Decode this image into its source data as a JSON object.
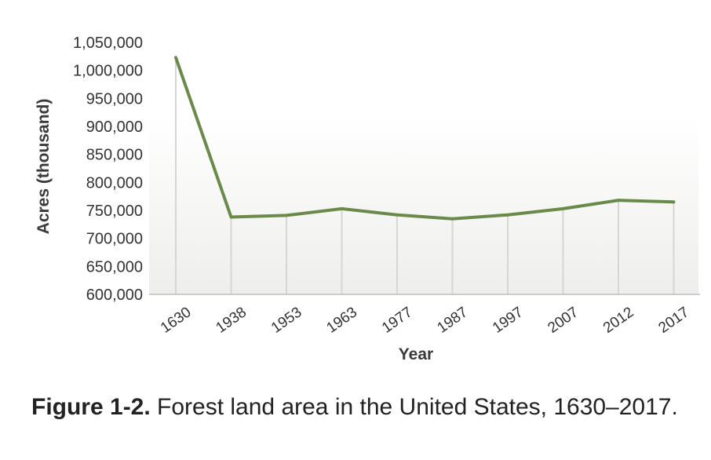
{
  "chart_data": {
    "type": "line",
    "xlabel": "Year",
    "ylabel": "Acres (thousand)",
    "categories": [
      "1630",
      "1938",
      "1953",
      "1963",
      "1977",
      "1987",
      "1997",
      "2007",
      "2012",
      "2017"
    ],
    "series": [
      {
        "values": [
          1023000,
          738000,
          741000,
          753000,
          742000,
          735000,
          742000,
          753000,
          768000,
          765000
        ]
      }
    ],
    "ylim": [
      600000,
      1050000
    ],
    "yticks": [
      "600,000",
      "650,000",
      "700,000",
      "750,000",
      "800,000",
      "850,000",
      "900,000",
      "950,000",
      "1,000,000",
      "1,050,000"
    ],
    "line_color": "#6a8a4a",
    "grid": "vertical",
    "legend": "none"
  },
  "caption": {
    "label": "Figure 1-2.",
    "text": " Forest land area in the United States, 1630–2017."
  }
}
